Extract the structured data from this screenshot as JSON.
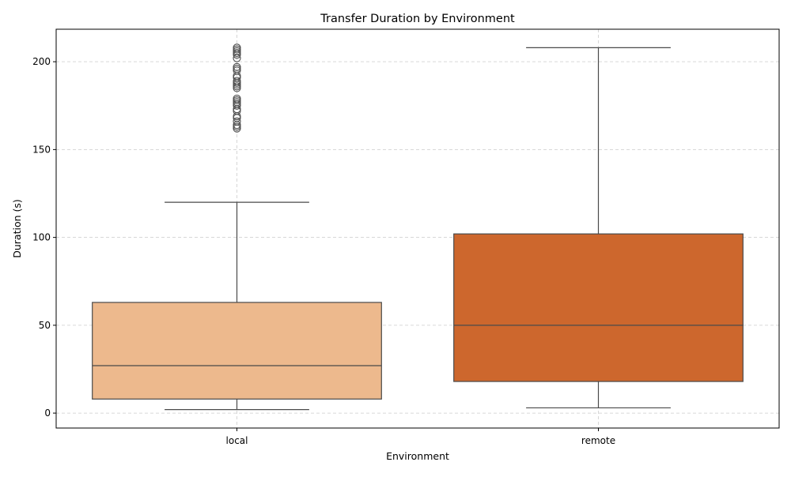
{
  "chart_data": {
    "type": "box",
    "title": "Transfer Duration by Environment",
    "xlabel": "Environment",
    "ylabel": "Duration (s)",
    "ylim": [
      -8.5,
      218.5
    ],
    "yticks": [
      0,
      50,
      100,
      150,
      200
    ],
    "grid": true,
    "legend": "none",
    "categories": [
      "local",
      "remote"
    ],
    "boxes": [
      {
        "category": "local",
        "color": "#edb98d",
        "whisker_low": 2,
        "q1": 8,
        "median": 27,
        "q3": 63,
        "whisker_high": 120,
        "outliers": [
          162,
          163,
          164,
          166,
          168,
          169,
          172,
          173,
          175,
          176,
          177,
          178,
          179,
          185,
          186,
          187,
          188,
          189,
          191,
          192,
          195,
          196,
          197,
          202,
          204,
          205,
          206,
          207,
          208
        ]
      },
      {
        "category": "remote",
        "color": "#cd672d",
        "whisker_low": 3,
        "q1": 18,
        "median": 50,
        "q3": 102,
        "whisker_high": 208,
        "outliers": []
      }
    ]
  }
}
